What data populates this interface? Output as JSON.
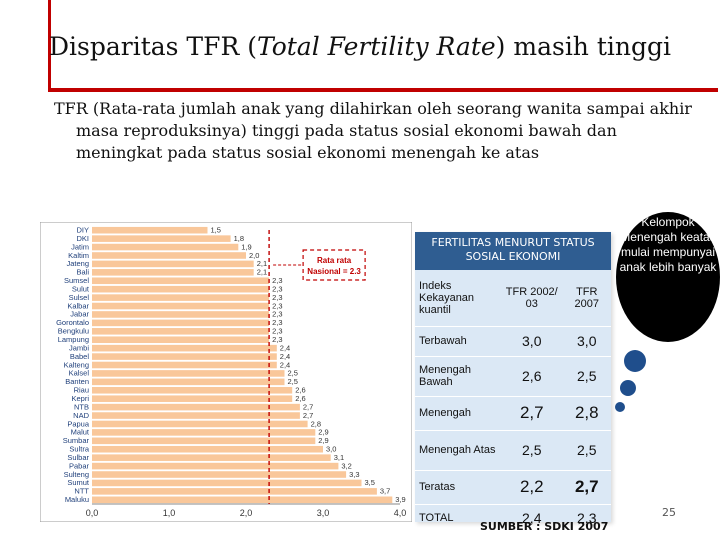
{
  "slide": {
    "title_plain": "Disparitas TFR (",
    "title_em": "Total Fertility Rate",
    "title_end": ") masih tinggi",
    "intro": "TFR (Rata-rata jumlah anak yang dilahirkan oleh seorang wanita sampai akhir masa reproduksinya) tinggi pada status sosial ekonomi bawah dan meningkat pada status sosial ekonomi menengah ke atas",
    "page_number": "25",
    "source": "SUMBER : SDKI 2007"
  },
  "callout": {
    "text": "Kelompok Menengah keatas mulai mempunyai anak lebih banyak"
  },
  "table": {
    "title": "FERTILITAS MENURUT STATUS SOSIAL EKONOMI",
    "headers": [
      "Indeks Kekayanan kuantil",
      "TFR 2002/ 03",
      "TFR 2007"
    ],
    "rows": [
      {
        "label": "Terbawah",
        "tfr_2002_03": "3,0",
        "tfr_2007": "3,0"
      },
      {
        "label": "Menengah Bawah",
        "tfr_2002_03": "2,6",
        "tfr_2007": "2,5"
      },
      {
        "label": "Menengah",
        "tfr_2002_03": "2,7",
        "tfr_2007": "2,8"
      },
      {
        "label": "Menengah Atas",
        "tfr_2002_03": "2,5",
        "tfr_2007": "2,5"
      },
      {
        "label": "Teratas",
        "tfr_2002_03": "2,2",
        "tfr_2007": "2,7"
      },
      {
        "label": "TOTAL",
        "tfr_2002_03": "2,4",
        "tfr_2007": "2,3"
      }
    ],
    "colors": {
      "header": "#2f5d91",
      "body": "#dbe8f5"
    }
  },
  "chart_data": {
    "type": "bar",
    "orientation": "horizontal",
    "categories": [
      "DIY",
      "DKI",
      "Jatim",
      "Kaltim",
      "Jateng",
      "Bali",
      "Sumsel",
      "Sulut",
      "Sulsel",
      "Kalbar",
      "Jabar",
      "Gorontalo",
      "Bengkulu",
      "Lampung",
      "Jambi",
      "Babel",
      "Kalteng",
      "Kalsel",
      "Banten",
      "Riau",
      "Kepri",
      "NTB",
      "NAD",
      "Papua",
      "Malut",
      "Sumbar",
      "Sultra",
      "Sulbar",
      "Pabar",
      "Sulteng",
      "Sumut",
      "NTT",
      "Maluku"
    ],
    "values": [
      1.5,
      1.8,
      1.9,
      2.0,
      2.1,
      2.1,
      2.3,
      2.3,
      2.3,
      2.3,
      2.3,
      2.3,
      2.3,
      2.3,
      2.4,
      2.4,
      2.4,
      2.5,
      2.5,
      2.6,
      2.6,
      2.7,
      2.7,
      2.8,
      2.9,
      2.9,
      3.0,
      3.1,
      3.2,
      3.3,
      3.5,
      3.7,
      3.9
    ],
    "value_labels": [
      "1,5",
      "1,8",
      "1,9",
      "2,0",
      "2,1",
      "2,1",
      "2,3",
      "2,3",
      "2,3",
      "2,3",
      "2,3",
      "2,3",
      "2,3",
      "2,3",
      "2,4",
      "2,4",
      "2,4",
      "2,5",
      "2,5",
      "2,6",
      "2,6",
      "2,7",
      "2,7",
      "2,8",
      "2,9",
      "2,9",
      "3,0",
      "3,1",
      "3,2",
      "3,3",
      "3,5",
      "3,7",
      "3,9"
    ],
    "xlim": [
      0,
      4.0
    ],
    "x_ticks": [
      "0,0",
      "1,0",
      "2,0",
      "3,0",
      "4,0"
    ],
    "reference_line": {
      "value": 2.3,
      "label": "Rata rata Nasional = 2.3"
    },
    "bar_color": "#f9c79a",
    "reference_color": "#c00000"
  }
}
